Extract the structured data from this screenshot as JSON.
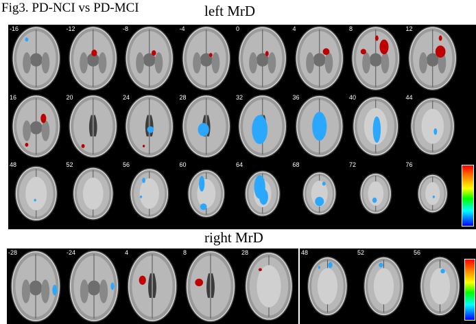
{
  "figure": {
    "title": "Fig3. PD-NCI vs PD-MCI"
  },
  "left_section": {
    "title": "left MrD",
    "rows": [
      [
        "-16",
        "-12",
        "-8",
        "-4",
        "0",
        "4",
        "8",
        "12"
      ],
      [
        "16",
        "20",
        "24",
        "28",
        "32",
        "36",
        "40",
        "44"
      ],
      [
        "48",
        "52",
        "56",
        "60",
        "64",
        "68",
        "72",
        "76"
      ]
    ]
  },
  "right_section": {
    "title": "right MrD",
    "group_a": [
      "-28",
      "-24",
      "4",
      "8",
      "28"
    ],
    "group_b": [
      "48",
      "52",
      "56"
    ]
  },
  "colors": {
    "panel_background": "#000000",
    "positive_cluster": "#c00000",
    "negative_cluster": "#2aa8ff",
    "colorbar_top": "#ff0000",
    "colorbar_bottom": "#0000ff"
  }
}
